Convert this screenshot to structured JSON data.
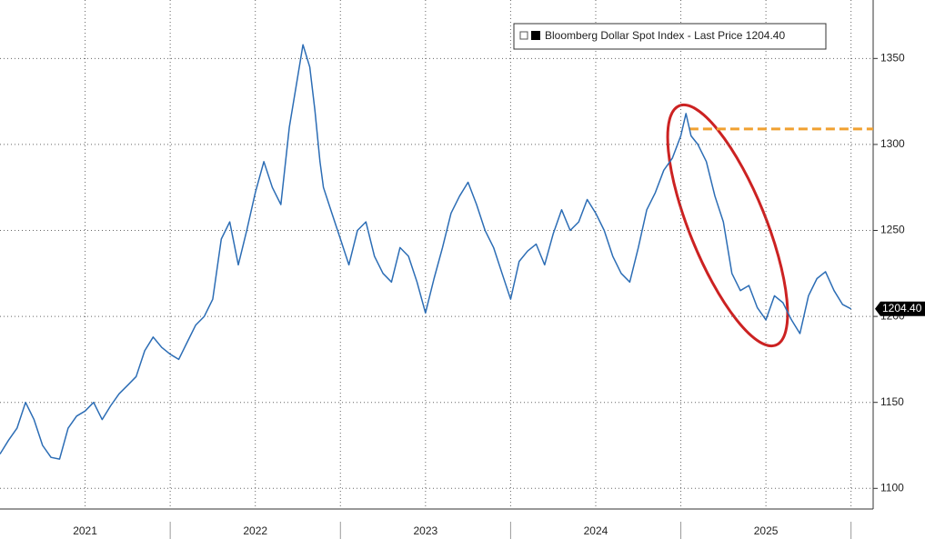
{
  "chart_data": {
    "type": "line",
    "x": [
      2021.0,
      2021.05,
      2021.1,
      2021.15,
      2021.2,
      2021.25,
      2021.3,
      2021.35,
      2021.4,
      2021.45,
      2021.5,
      2021.55,
      2021.6,
      2021.65,
      2021.7,
      2021.75,
      2021.8,
      2021.85,
      2021.9,
      2021.95,
      2022.0,
      2022.05,
      2022.1,
      2022.15,
      2022.2,
      2022.25,
      2022.3,
      2022.35,
      2022.4,
      2022.45,
      2022.5,
      2022.55,
      2022.6,
      2022.65,
      2022.7,
      2022.75,
      2022.78,
      2022.82,
      2022.85,
      2022.88,
      2022.9,
      2022.95,
      2023.0,
      2023.05,
      2023.1,
      2023.15,
      2023.2,
      2023.25,
      2023.3,
      2023.35,
      2023.4,
      2023.45,
      2023.5,
      2023.55,
      2023.6,
      2023.65,
      2023.7,
      2023.75,
      2023.8,
      2023.85,
      2023.9,
      2023.95,
      2024.0,
      2024.05,
      2024.1,
      2024.15,
      2024.2,
      2024.25,
      2024.3,
      2024.35,
      2024.4,
      2024.45,
      2024.5,
      2024.55,
      2024.6,
      2024.65,
      2024.7,
      2024.75,
      2024.8,
      2024.85,
      2024.9,
      2024.95,
      2025.0,
      2025.03,
      2025.06,
      2025.1,
      2025.15,
      2025.2,
      2025.25,
      2025.3,
      2025.35,
      2025.4,
      2025.45,
      2025.5,
      2025.55,
      2025.6,
      2025.65,
      2025.7,
      2025.75,
      2025.8,
      2025.85,
      2025.9,
      2025.95,
      2026.0
    ],
    "series": [
      {
        "name": "Bloomberg Dollar Spot Index - Last Price 1204.40",
        "color": "#2c6db5",
        "values": [
          1120,
          1128,
          1135,
          1150,
          1140,
          1125,
          1118,
          1117,
          1135,
          1142,
          1145,
          1150,
          1140,
          1148,
          1155,
          1160,
          1165,
          1180,
          1188,
          1182,
          1178,
          1175,
          1185,
          1195,
          1200,
          1210,
          1245,
          1255,
          1230,
          1250,
          1272,
          1290,
          1275,
          1265,
          1310,
          1340,
          1358,
          1345,
          1320,
          1290,
          1275,
          1260,
          1245,
          1230,
          1250,
          1255,
          1235,
          1225,
          1220,
          1240,
          1235,
          1220,
          1202,
          1222,
          1240,
          1260,
          1270,
          1278,
          1265,
          1250,
          1240,
          1225,
          1210,
          1232,
          1238,
          1242,
          1230,
          1248,
          1262,
          1250,
          1255,
          1268,
          1260,
          1250,
          1235,
          1225,
          1220,
          1240,
          1262,
          1272,
          1285,
          1292,
          1305,
          1318,
          1305,
          1300,
          1290,
          1270,
          1255,
          1225,
          1215,
          1218,
          1205,
          1198,
          1212,
          1208,
          1198,
          1190,
          1212,
          1222,
          1226,
          1215,
          1207,
          1204.4
        ]
      }
    ],
    "last_price_label": "1204.40",
    "xlim": [
      2021.0,
      2026.13
    ],
    "xticks": [
      {
        "value": 2021.5,
        "label": "2021"
      },
      {
        "value": 2022.5,
        "label": "2022"
      },
      {
        "value": 2023.5,
        "label": "2023"
      },
      {
        "value": 2024.5,
        "label": "2024"
      },
      {
        "value": 2025.5,
        "label": "2025"
      }
    ],
    "x_separators": [
      2022,
      2023,
      2024,
      2025,
      2026
    ],
    "ylim": [
      1088,
      1384
    ],
    "yticks": [
      1100,
      1150,
      1200,
      1250,
      1300,
      1350
    ],
    "grid": true,
    "reference_line": {
      "y": 1309,
      "x": [
        2025.05,
        2026.13
      ],
      "color": "#f0a030"
    }
  }
}
